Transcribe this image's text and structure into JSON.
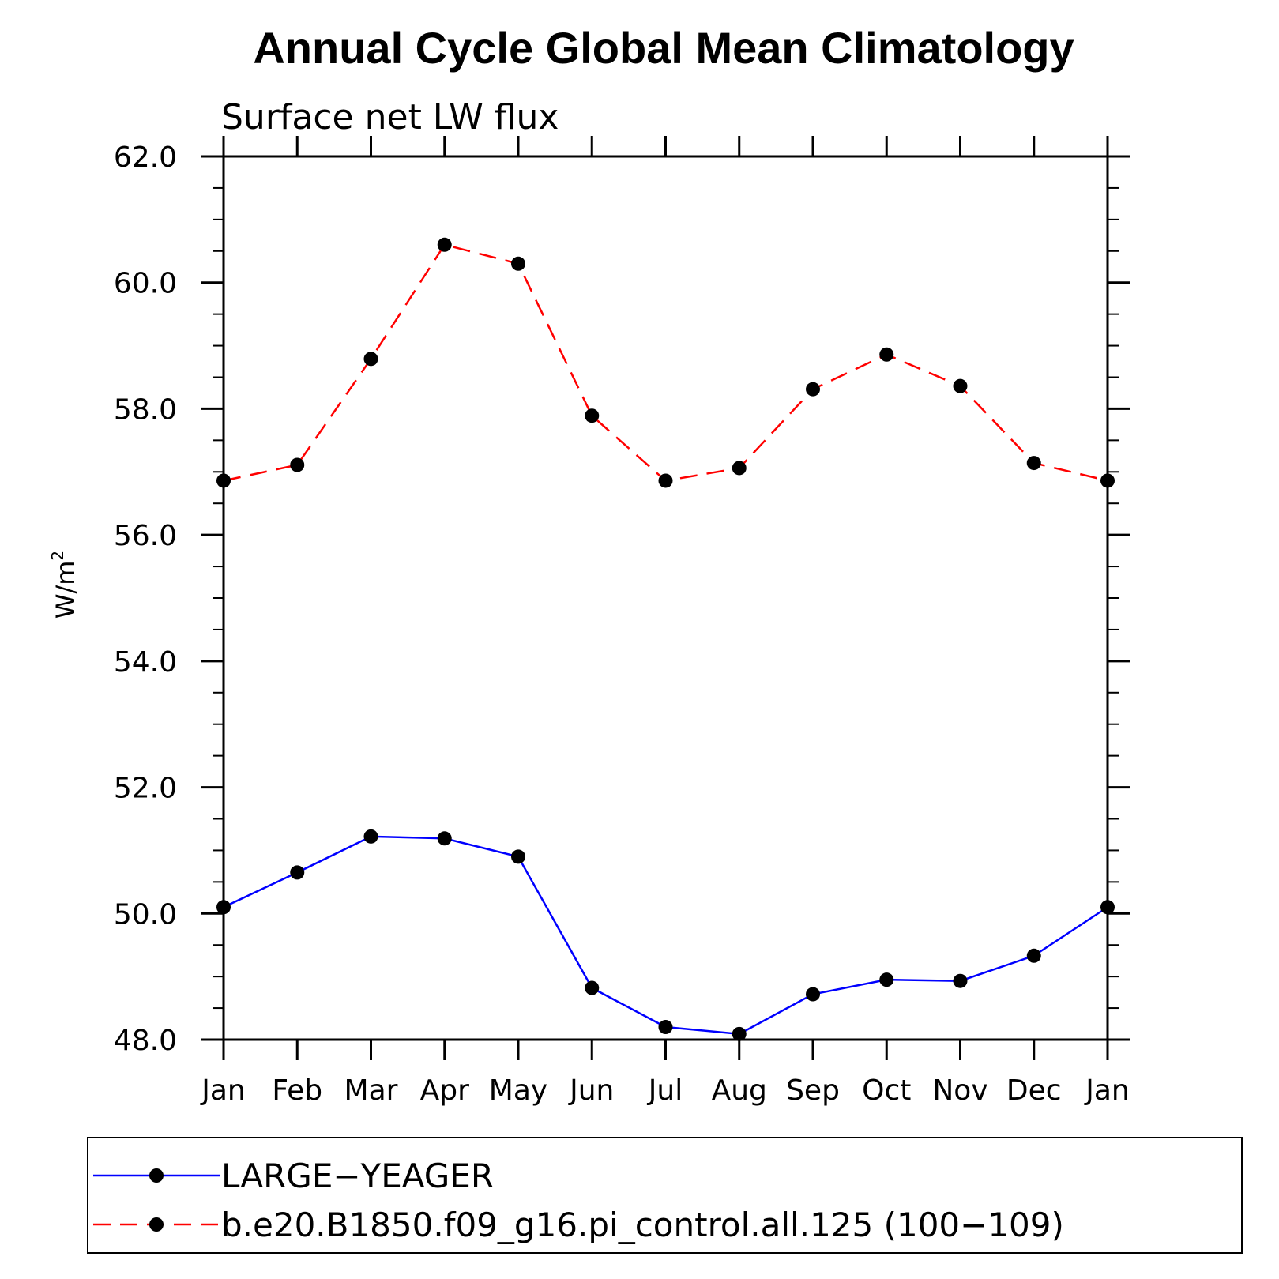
{
  "chart_data": {
    "type": "line",
    "title": "Annual Cycle Global Mean Climatology",
    "subtitle": "Surface net LW flux",
    "ylabel": "W/m",
    "ylabel_superscript": "2",
    "xlabel": "",
    "categories": [
      "Jan",
      "Feb",
      "Mar",
      "Apr",
      "May",
      "Jun",
      "Jul",
      "Aug",
      "Sep",
      "Oct",
      "Nov",
      "Dec",
      "Jan"
    ],
    "ylim": [
      48.0,
      62.0
    ],
    "yticks": [
      "48.0",
      "50.0",
      "52.0",
      "54.0",
      "56.0",
      "58.0",
      "60.0",
      "62.0"
    ],
    "grid": false,
    "legend_position": "bottom",
    "series": [
      {
        "name": "LARGE−YEAGER",
        "color": "#0000ff",
        "dash": "solid",
        "values": [
          50.1,
          50.65,
          51.22,
          51.19,
          50.9,
          48.82,
          48.2,
          48.09,
          48.72,
          48.95,
          48.93,
          49.33,
          50.1
        ]
      },
      {
        "name": "b.e20.B1850.f09_g16.pi_control.all.125 (100−109)",
        "color": "#ff0000",
        "dash": "dashed",
        "values": [
          56.86,
          57.11,
          58.79,
          60.6,
          60.3,
          57.89,
          56.86,
          57.06,
          58.31,
          58.86,
          58.36,
          57.14,
          56.86
        ]
      }
    ]
  }
}
